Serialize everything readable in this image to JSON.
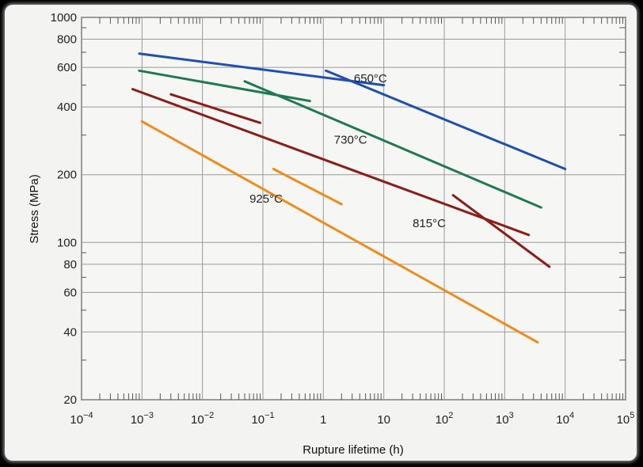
{
  "chart_data": {
    "type": "line",
    "title": "",
    "xlabel": "Rupture lifetime (h)",
    "ylabel": "Stress (MPa)",
    "x_scale": "log",
    "y_scale": "log",
    "xlim": [
      0.0001,
      100000
    ],
    "ylim": [
      20,
      1000
    ],
    "grid": true,
    "x_ticks": [
      {
        "value": 0.0001,
        "base": "10",
        "exp": "−4"
      },
      {
        "value": 0.001,
        "base": "10",
        "exp": "−3"
      },
      {
        "value": 0.01,
        "base": "10",
        "exp": "−2"
      },
      {
        "value": 0.1,
        "base": "10",
        "exp": "−1"
      },
      {
        "value": 1,
        "base": "1",
        "exp": ""
      },
      {
        "value": 10,
        "base": "10",
        "exp": ""
      },
      {
        "value": 100,
        "base": "10",
        "exp": "2"
      },
      {
        "value": 1000,
        "base": "10",
        "exp": "3"
      },
      {
        "value": 10000,
        "base": "10",
        "exp": "4"
      },
      {
        "value": 100000,
        "base": "10",
        "exp": "5"
      }
    ],
    "y_ticks": [
      {
        "value": 20,
        "label": "20"
      },
      {
        "value": 40,
        "label": "40"
      },
      {
        "value": 60,
        "label": "60"
      },
      {
        "value": 80,
        "label": "80"
      },
      {
        "value": 100,
        "label": "100"
      },
      {
        "value": 200,
        "label": "200"
      },
      {
        "value": 400,
        "label": "400"
      },
      {
        "value": 600,
        "label": "600"
      },
      {
        "value": 800,
        "label": "800"
      },
      {
        "value": 1000,
        "label": "1000"
      }
    ],
    "series": [
      {
        "name": "650°C",
        "color": "#1f4fb3",
        "segments": [
          [
            [
              0.0009,
              690
            ],
            [
              10,
              500
            ]
          ],
          [
            [
              1.1,
              580
            ],
            [
              10000,
              212
            ]
          ]
        ]
      },
      {
        "name": "730°C",
        "color": "#1f7a52",
        "segments": [
          [
            [
              0.0009,
              580
            ],
            [
              0.6,
              425
            ]
          ],
          [
            [
              0.05,
              520
            ],
            [
              4000,
              143
            ]
          ]
        ]
      },
      {
        "name": "815°C",
        "color": "#8b1e18",
        "segments": [
          [
            [
              0.0007,
              480
            ],
            [
              2500,
              108
            ]
          ],
          [
            [
              0.003,
              455
            ],
            [
              0.09,
              340
            ]
          ],
          [
            [
              140,
              162
            ],
            [
              5500,
              78
            ]
          ]
        ]
      },
      {
        "name": "925°C",
        "color": "#f08c1e",
        "segments": [
          [
            [
              0.001,
              345
            ],
            [
              3500,
              36
            ]
          ],
          [
            [
              0.15,
              212
            ],
            [
              2,
              148
            ]
          ]
        ]
      }
    ]
  }
}
